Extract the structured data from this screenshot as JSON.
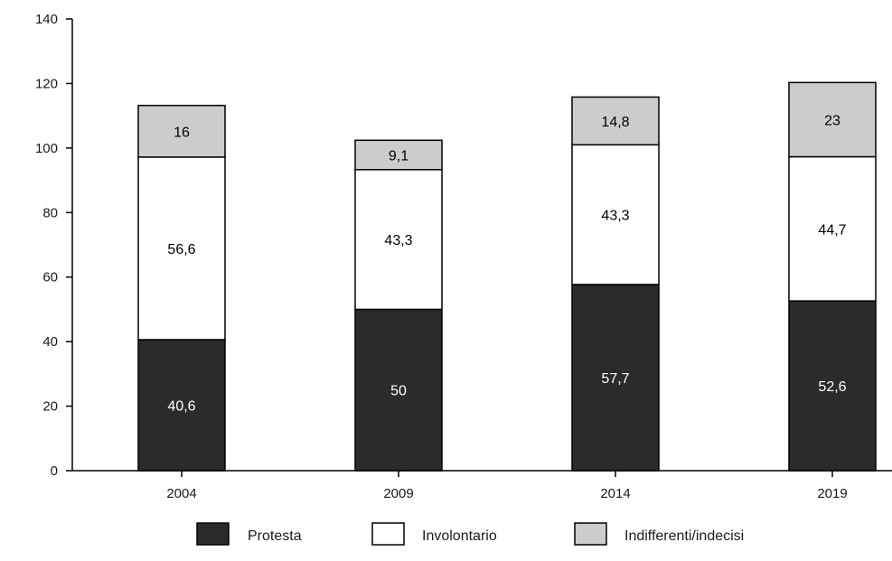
{
  "chart_data": {
    "type": "bar",
    "stacked": true,
    "title": "",
    "xlabel": "",
    "ylabel": "",
    "categories": [
      "2004",
      "2009",
      "2014",
      "2019"
    ],
    "ylim": [
      0,
      140
    ],
    "yticks": [
      0,
      20,
      40,
      60,
      80,
      100,
      120,
      140
    ],
    "grid": false,
    "legend_position": "bottom",
    "series": [
      {
        "name": "Protesta",
        "values": [
          40.6,
          50,
          57.7,
          52.6
        ],
        "labels": [
          "40,6",
          "50",
          "57,7",
          "52,6"
        ],
        "color": "#2b2b2b",
        "label_color": "#ffffff"
      },
      {
        "name": "Involontario",
        "values": [
          56.6,
          43.3,
          43.3,
          44.7
        ],
        "labels": [
          "56,6",
          "43,3",
          "43,3",
          "44,7"
        ],
        "color": "#ffffff",
        "label_color": "#000000"
      },
      {
        "name": "Indifferenti/indecisi",
        "values": [
          16,
          9.1,
          14.8,
          23
        ],
        "labels": [
          "16",
          "9,1",
          "14,8",
          "23"
        ],
        "color": "#cccccc",
        "label_color": "#000000"
      }
    ]
  }
}
